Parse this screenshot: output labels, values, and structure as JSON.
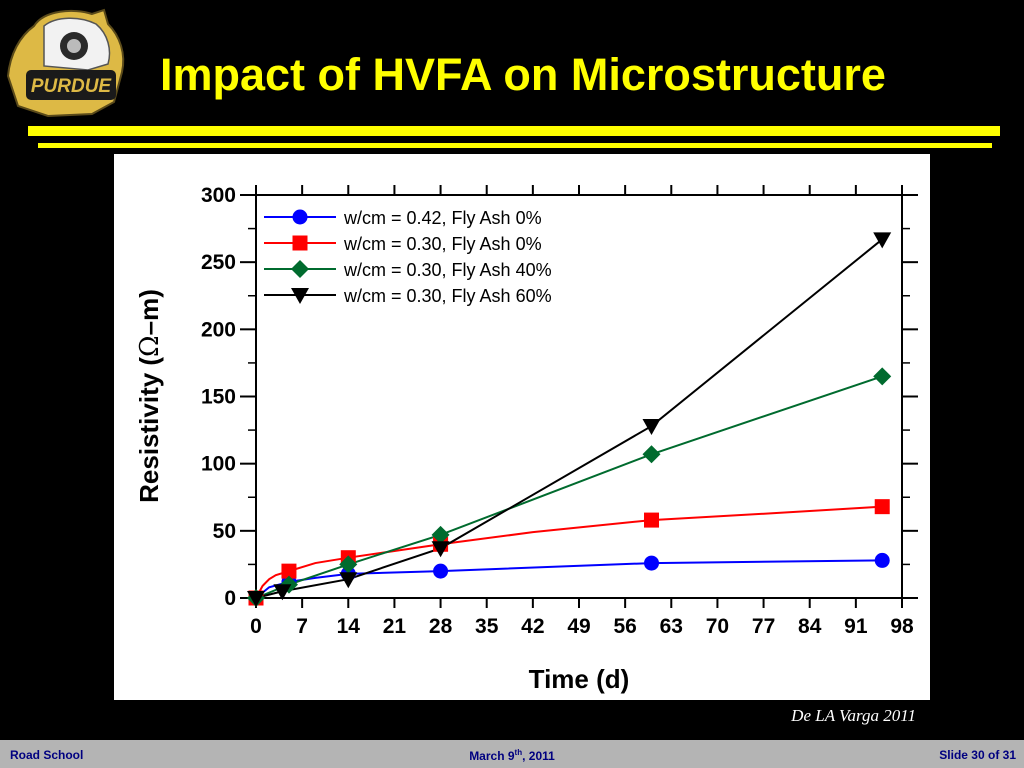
{
  "slide": {
    "title": "Impact of HVFA on Microstructure",
    "citation": "De LA Varga 2011",
    "logo_text": "PURDUE"
  },
  "footer": {
    "left": "Road School",
    "center_prefix": "March 9",
    "center_sup": "th",
    "center_suffix": ", 2011",
    "right": "Slide 30 of 31"
  },
  "colors": {
    "background": "#000000",
    "title": "#FFFF00",
    "footer_bg": "#B4B4B4",
    "footer_text": "#000080"
  },
  "chart_data": {
    "type": "line",
    "xlabel": "Time (d)",
    "ylabel_prefix": "Resistivity (",
    "ylabel_symbol": "Ω",
    "ylabel_suffix": "–m)",
    "xlim": [
      0,
      98
    ],
    "ylim": [
      0,
      300
    ],
    "xticks": [
      0,
      7,
      14,
      21,
      28,
      35,
      42,
      49,
      56,
      63,
      70,
      77,
      84,
      91,
      98
    ],
    "yticks": [
      0,
      50,
      100,
      150,
      200,
      250,
      300
    ],
    "legend_position": "top-left",
    "grid": false,
    "series": [
      {
        "name": "w/cm = 0.42, Fly Ash 0%",
        "color": "#0000FF",
        "marker": "circle",
        "x": [
          0,
          5,
          14,
          28,
          60,
          95
        ],
        "y": [
          0,
          12,
          18,
          20,
          26,
          28
        ],
        "curve": [
          [
            0,
            0
          ],
          [
            2,
            8
          ],
          [
            5,
            12
          ],
          [
            9,
            15
          ],
          [
            14,
            18
          ],
          [
            28,
            20
          ],
          [
            60,
            26
          ],
          [
            95,
            28
          ]
        ]
      },
      {
        "name": "w/cm = 0.30, Fly Ash 0%",
        "color": "#FF0000",
        "marker": "square",
        "x": [
          0,
          5,
          14,
          28,
          60,
          95
        ],
        "y": [
          0,
          20,
          30,
          40,
          58,
          68
        ],
        "curve": [
          [
            0,
            0
          ],
          [
            1,
            9
          ],
          [
            2,
            14
          ],
          [
            3,
            17
          ],
          [
            5,
            20
          ],
          [
            9,
            26
          ],
          [
            14,
            30
          ],
          [
            21,
            35
          ],
          [
            28,
            40
          ],
          [
            42,
            49
          ],
          [
            60,
            58
          ],
          [
            78,
            63
          ],
          [
            95,
            68
          ]
        ]
      },
      {
        "name": "w/cm = 0.30, Fly Ash 40%",
        "color": "#006B2E",
        "marker": "diamond",
        "x": [
          0,
          5,
          14,
          28,
          60,
          95
        ],
        "y": [
          0,
          10,
          25,
          47,
          107,
          165
        ],
        "curve": [
          [
            0,
            0
          ],
          [
            5,
            10
          ],
          [
            14,
            25
          ],
          [
            28,
            47
          ],
          [
            60,
            107
          ],
          [
            95,
            165
          ]
        ]
      },
      {
        "name": "w/cm = 0.30, Fly Ash 60%",
        "color": "#000000",
        "marker": "triangle-down",
        "x": [
          0,
          4,
          14,
          28,
          60,
          95
        ],
        "y": [
          0,
          5,
          14,
          37,
          128,
          267
        ],
        "curve": [
          [
            0,
            0
          ],
          [
            4,
            5
          ],
          [
            14,
            14
          ],
          [
            28,
            37
          ],
          [
            60,
            128
          ],
          [
            95,
            267
          ]
        ]
      }
    ]
  }
}
